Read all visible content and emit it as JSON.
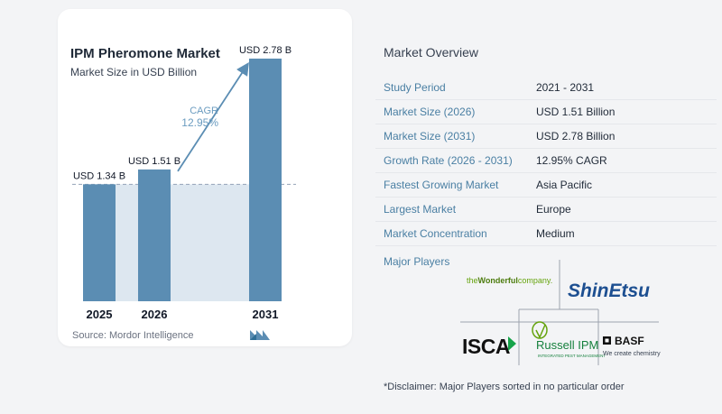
{
  "header": {
    "title": "IPM Pheromone Market",
    "subtitle": "Market Size in USD Billion"
  },
  "chart_data": {
    "type": "bar",
    "title": "IPM Pheromone Market",
    "subtitle": "Market Size in USD Billion",
    "categories": [
      "2025",
      "2026",
      "2031"
    ],
    "values": [
      1.34,
      1.51,
      2.78
    ],
    "value_labels": [
      "USD 1.34 B",
      "USD 1.51 B",
      "USD 2.78 B"
    ],
    "ylim": [
      0,
      3.1
    ],
    "xlabel": "",
    "ylabel": "",
    "grid": false,
    "bar_color": "#5b8db3",
    "shade_color": "#dde7f0",
    "cagr_label": "CAGR",
    "cagr_value": "12.95%",
    "accent_color": "#5b8db3"
  },
  "source": {
    "text": "Source:  Mordor Intelligence",
    "logo_icon": "mordor-intelligence-logo-icon"
  },
  "overview": {
    "title": "Market Overview",
    "rows": [
      {
        "label": "Study Period",
        "value": "2021 - 2031"
      },
      {
        "label": "Market Size (2026)",
        "value": "USD 1.51 Billion"
      },
      {
        "label": "Market Size (2031)",
        "value": "USD 2.78 Billion"
      },
      {
        "label": "Growth Rate (2026 - 2031)",
        "value": "12.95% CAGR"
      },
      {
        "label": "Fastest Growing Market",
        "value": "Asia Pacific"
      },
      {
        "label": "Largest Market",
        "value": "Europe"
      },
      {
        "label": "Market Concentration",
        "value": "Medium"
      }
    ]
  },
  "players": {
    "title": "Major Players",
    "logos": {
      "wonderful_the": "the",
      "wonderful_main": "Wonderful",
      "wonderful_tail": "company.",
      "shinetsu": "ShinEtsu",
      "isca": "ISCA",
      "russell": "Russell IPM",
      "russell_sub": "INTEGRATED PEST MANAGEMENT",
      "basf": "BASF",
      "basf_sub": "We create chemistry"
    }
  },
  "disclaimer": "*Disclaimer: Major Players sorted in no particular order"
}
